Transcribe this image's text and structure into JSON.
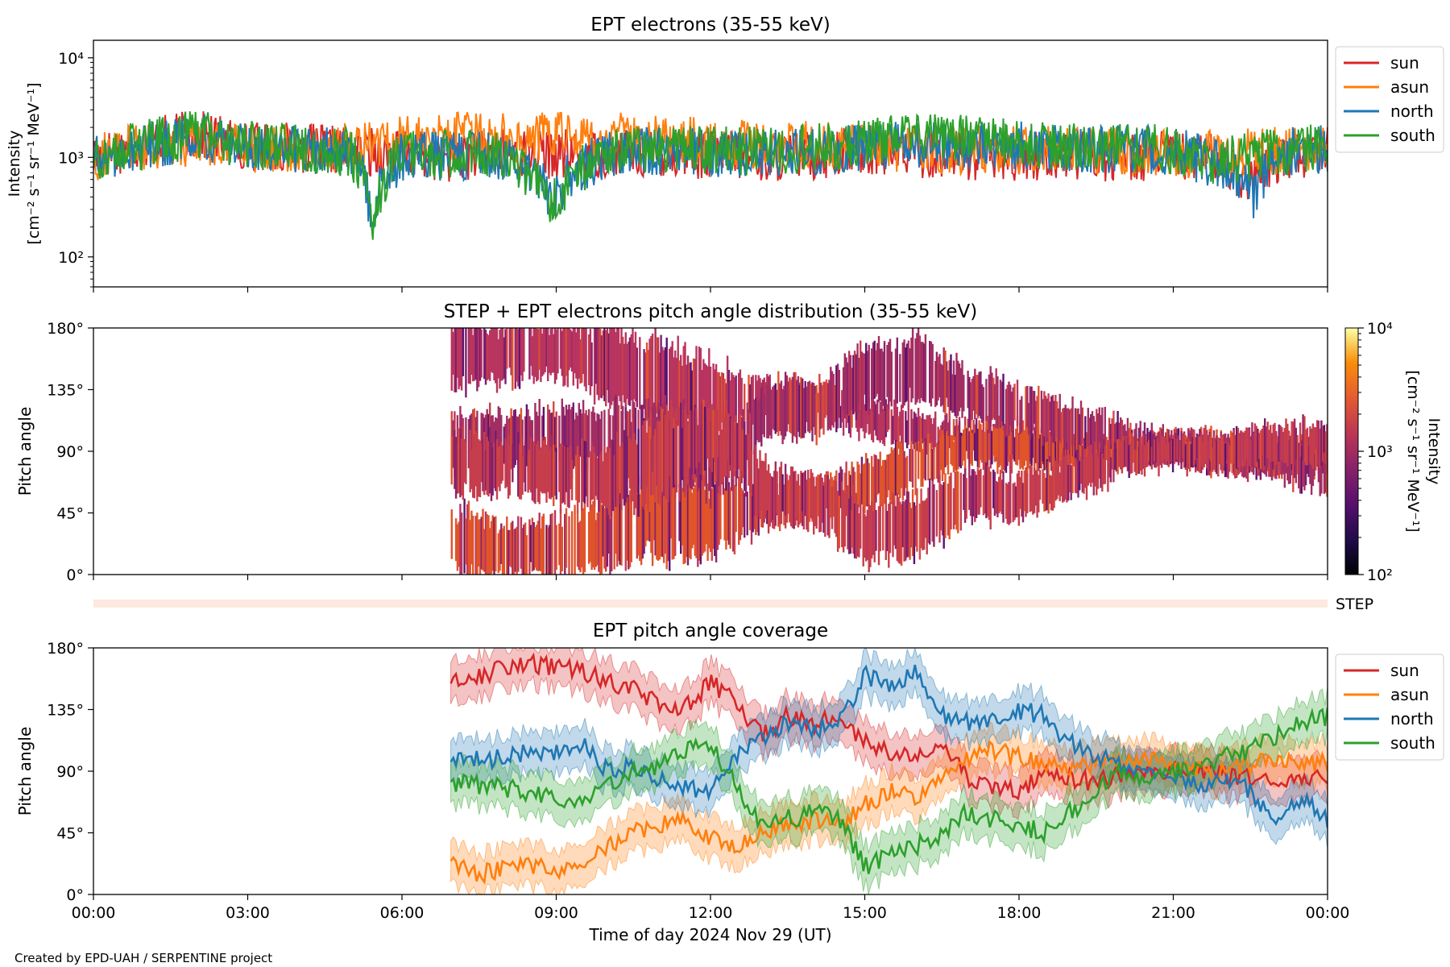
{
  "chart_data": [
    {
      "type": "line",
      "title": "EPT electrons (35-55 keV)",
      "ylabel_line1": "Intensity",
      "ylabel_line2": "[cm⁻² s⁻¹ sr⁻¹ MeV⁻¹]",
      "yscale": "log",
      "ylim": [
        50,
        15000
      ],
      "yticks": [
        {
          "value": 100,
          "label": "10²"
        },
        {
          "value": 1000,
          "label": "10³"
        },
        {
          "value": 10000,
          "label": "10⁴"
        }
      ],
      "xlim_hours": [
        0,
        24
      ],
      "legend_position": "outside-top-right",
      "series": [
        {
          "name": "sun",
          "color": "#d62728",
          "x": [
            0,
            1,
            2,
            3,
            4,
            5,
            6,
            7,
            8,
            9,
            10,
            11,
            12,
            13,
            14,
            15,
            16,
            17,
            18,
            19,
            20,
            21,
            22,
            22.5,
            23,
            24
          ],
          "y": [
            1000,
            1400,
            1700,
            1300,
            1250,
            1150,
            1100,
            1000,
            1150,
            1050,
            1100,
            1100,
            1050,
            1000,
            1050,
            1150,
            1100,
            1050,
            1000,
            1050,
            1000,
            1050,
            950,
            500,
            950,
            1150
          ]
        },
        {
          "name": "asun",
          "color": "#ff7f0e",
          "x": [
            0,
            1,
            2,
            3,
            4,
            5,
            6,
            7,
            8,
            9,
            10,
            11,
            12,
            13,
            14,
            15,
            16,
            17,
            18,
            19,
            20,
            21,
            22,
            23,
            24
          ],
          "y": [
            1000,
            1300,
            1400,
            1250,
            1200,
            1300,
            1450,
            1600,
            1600,
            1650,
            1600,
            1550,
            1450,
            1350,
            1300,
            1250,
            1200,
            1200,
            1200,
            1200,
            1150,
            1100,
            1100,
            1150,
            1250
          ]
        },
        {
          "name": "north",
          "color": "#1f77b4",
          "x": [
            0,
            1,
            2,
            3,
            4,
            5,
            5.4,
            6,
            7,
            8,
            8.9,
            10,
            11,
            12,
            13,
            14,
            15,
            16,
            17,
            18,
            19,
            20,
            21,
            22,
            22.6,
            23,
            24
          ],
          "y": [
            900,
            1300,
            1600,
            1300,
            1250,
            1100,
            250,
            1000,
            1050,
            1000,
            400,
            1100,
            1150,
            1100,
            1150,
            1150,
            1250,
            1350,
            1300,
            1300,
            1250,
            1200,
            1150,
            800,
            400,
            1100,
            1200
          ]
        },
        {
          "name": "south",
          "color": "#2ca02c",
          "x": [
            0,
            1,
            2,
            3,
            4,
            5,
            5.4,
            6,
            7,
            8,
            8.9,
            10,
            11,
            12,
            13,
            14,
            15,
            16,
            17,
            18,
            19,
            20,
            21,
            22,
            23,
            24
          ],
          "y": [
            950,
            1350,
            1700,
            1350,
            1250,
            1100,
            200,
            1050,
            1100,
            1050,
            300,
            1150,
            1200,
            1150,
            1150,
            1250,
            1400,
            1600,
            1500,
            1400,
            1300,
            1250,
            1200,
            900,
            1150,
            1250
          ]
        }
      ]
    },
    {
      "type": "heatmap",
      "title": "STEP + EPT electrons pitch angle distribution (35-55 keV)",
      "ylabel": "Pitch angle",
      "ylim": [
        0,
        180
      ],
      "yticks": [
        "0°",
        "45°",
        "90°",
        "135°",
        "180°"
      ],
      "xlim_hours": [
        0,
        24
      ],
      "data_start_hour": 6.95,
      "colormap": "inferno",
      "colorbar": {
        "label_line1": "Intensity",
        "label_line2": "[cm⁻² s⁻¹ sr⁻¹ MeV⁻¹]",
        "scale": "log",
        "range": [
          100,
          10000
        ],
        "ticks": [
          {
            "value": 100,
            "label": "10²"
          },
          {
            "value": 1000,
            "label": "10³"
          },
          {
            "value": 10000,
            "label": "10⁴"
          }
        ]
      },
      "bands": [
        {
          "name": "sun",
          "color": "#b8355f",
          "t": [
            6.95,
            8,
            9,
            10,
            11,
            12,
            12.5,
            13,
            14,
            15,
            16,
            17,
            18,
            19,
            20,
            21,
            22,
            23,
            24
          ],
          "center": [
            160,
            162,
            165,
            155,
            140,
            130,
            125,
            130,
            125,
            115,
            105,
            100,
            95,
            90,
            90,
            88,
            85,
            88,
            90
          ],
          "halfwidth": [
            22,
            20,
            18,
            25,
            30,
            25,
            20,
            12,
            10,
            12,
            12,
            10,
            12,
            10,
            8,
            8,
            10,
            12,
            10
          ]
        },
        {
          "name": "asun",
          "color": "#e0542a",
          "t": [
            6.95,
            8,
            9,
            10,
            11,
            12,
            12.5,
            13,
            14,
            15,
            16,
            17,
            18,
            19,
            20,
            21,
            22,
            23,
            24
          ],
          "center": [
            25,
            18,
            20,
            30,
            45,
            40,
            45,
            50,
            55,
            65,
            80,
            95,
            95,
            90,
            92,
            95,
            90,
            88,
            85
          ],
          "halfwidth": [
            22,
            18,
            20,
            25,
            30,
            25,
            20,
            15,
            12,
            18,
            15,
            14,
            15,
            10,
            8,
            8,
            10,
            12,
            10
          ]
        },
        {
          "name": "north",
          "color": "#a12e63",
          "t": [
            6.95,
            8,
            9,
            10,
            11,
            12,
            12.5,
            13,
            14,
            15,
            16,
            17,
            18,
            19,
            20,
            21,
            22,
            23,
            24
          ],
          "center": [
            95,
            98,
            100,
            100,
            95,
            85,
            90,
            120,
            120,
            145,
            150,
            130,
            120,
            110,
            100,
            92,
            90,
            85,
            75
          ],
          "halfwidth": [
            22,
            18,
            20,
            22,
            28,
            25,
            20,
            20,
            18,
            20,
            20,
            18,
            16,
            14,
            12,
            10,
            12,
            14,
            14
          ]
        },
        {
          "name": "south",
          "color": "#c63d4c",
          "t": [
            6.95,
            8,
            9,
            10,
            11,
            12,
            12.5,
            13,
            14,
            15,
            16,
            17,
            18,
            19,
            20,
            21,
            22,
            23,
            24
          ],
          "center": [
            82,
            78,
            75,
            70,
            85,
            100,
            95,
            60,
            55,
            30,
            35,
            60,
            55,
            70,
            85,
            90,
            88,
            95,
            95
          ],
          "halfwidth": [
            22,
            18,
            20,
            22,
            28,
            25,
            20,
            20,
            18,
            20,
            20,
            18,
            16,
            14,
            12,
            10,
            12,
            14,
            14
          ]
        }
      ]
    },
    {
      "type": "bar",
      "label": "STEP",
      "color": "#fde9df",
      "xlim_hours": [
        0,
        24
      ]
    },
    {
      "type": "area",
      "title": "EPT pitch angle coverage",
      "ylabel": "Pitch angle",
      "ylim": [
        0,
        180
      ],
      "yticks": [
        "0°",
        "45°",
        "90°",
        "135°",
        "180°"
      ],
      "xlim_hours": [
        0,
        24
      ],
      "xticks": [
        "00:00",
        "03:00",
        "06:00",
        "09:00",
        "12:00",
        "15:00",
        "18:00",
        "21:00",
        "00:00"
      ],
      "xlabel": "Time of day 2024 Nov 29 (UT)",
      "legend_position": "outside-top-right",
      "series": [
        {
          "name": "sun",
          "color": "#d62728",
          "x": [
            6.95,
            7.5,
            8,
            8.5,
            9,
            9.5,
            10,
            10.5,
            11,
            11.5,
            12,
            12.5,
            13,
            13.5,
            14,
            14.5,
            15,
            15.5,
            16,
            16.5,
            17,
            17.5,
            18,
            18.5,
            19,
            19.5,
            20,
            20.5,
            21,
            21.5,
            22,
            22.5,
            23,
            23.5,
            24
          ],
          "y": [
            155,
            160,
            165,
            168,
            165,
            163,
            155,
            150,
            140,
            135,
            155,
            140,
            115,
            130,
            125,
            128,
            110,
            105,
            100,
            115,
            85,
            80,
            75,
            90,
            85,
            82,
            88,
            90,
            92,
            90,
            88,
            85,
            80,
            82,
            85
          ],
          "halfwidth": 15
        },
        {
          "name": "asun",
          "color": "#ff7f0e",
          "x": [
            6.95,
            7.5,
            8,
            8.5,
            9,
            9.5,
            10,
            10.5,
            11,
            11.5,
            12,
            12.5,
            13,
            13.5,
            14,
            14.5,
            15,
            15.5,
            16,
            16.5,
            17,
            17.5,
            18,
            18.5,
            19,
            19.5,
            20,
            20.5,
            21,
            21.5,
            22,
            22.5,
            23,
            23.5,
            24
          ],
          "y": [
            25,
            15,
            18,
            20,
            18,
            25,
            35,
            45,
            50,
            55,
            40,
            35,
            45,
            50,
            55,
            50,
            65,
            75,
            70,
            85,
            100,
            105,
            100,
            95,
            90,
            95,
            100,
            98,
            95,
            92,
            90,
            95,
            100,
            98,
            95
          ],
          "halfwidth": 15
        },
        {
          "name": "north",
          "color": "#1f77b4",
          "x": [
            6.95,
            7.5,
            8,
            8.5,
            9,
            9.5,
            10,
            10.5,
            11,
            11.5,
            12,
            12.5,
            13,
            13.5,
            14,
            14.5,
            15,
            15.5,
            16,
            16.5,
            17,
            17.5,
            18,
            18.5,
            19,
            19.5,
            20,
            20.5,
            21,
            21.5,
            22,
            22.5,
            23,
            23.5,
            24
          ],
          "y": [
            97,
            98,
            100,
            105,
            105,
            110,
            90,
            95,
            85,
            80,
            75,
            100,
            115,
            125,
            120,
            125,
            160,
            150,
            165,
            130,
            125,
            130,
            135,
            130,
            110,
            100,
            95,
            90,
            85,
            80,
            85,
            75,
            50,
            70,
            55
          ],
          "halfwidth": 15
        },
        {
          "name": "south",
          "color": "#2ca02c",
          "x": [
            6.95,
            7.5,
            8,
            8.5,
            9,
            9.5,
            10,
            10.5,
            11,
            11.5,
            12,
            12.5,
            13,
            13.5,
            14,
            14.5,
            15,
            15.5,
            16,
            16.5,
            17,
            17.5,
            18,
            18.5,
            19,
            19.5,
            20,
            20.5,
            21,
            21.5,
            22,
            22.5,
            23,
            23.5,
            24
          ],
          "y": [
            82,
            80,
            78,
            75,
            70,
            65,
            80,
            90,
            95,
            105,
            110,
            80,
            50,
            55,
            60,
            55,
            20,
            30,
            35,
            45,
            60,
            55,
            50,
            45,
            60,
            75,
            90,
            85,
            90,
            95,
            100,
            105,
            115,
            125,
            130
          ],
          "halfwidth": 15
        }
      ]
    }
  ],
  "footer": {
    "credit": "Created by EPD-UAH / SERPENTINE project"
  }
}
